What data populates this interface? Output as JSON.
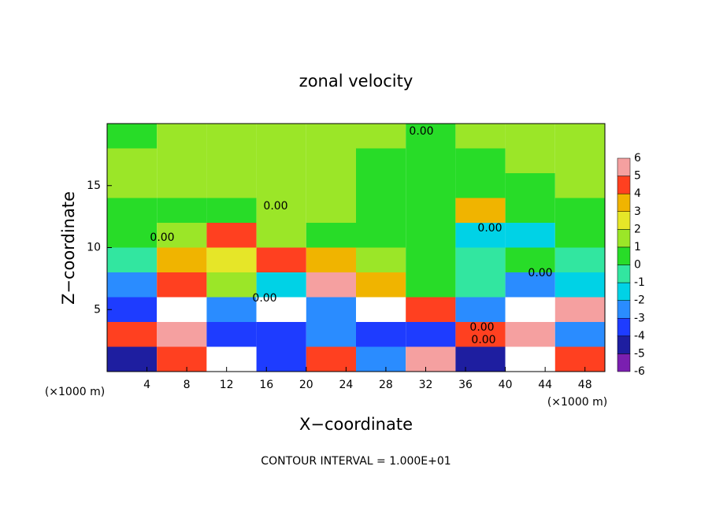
{
  "chart_data": {
    "type": "heatmap",
    "title": "zonal velocity",
    "x_label": "X−coordinate",
    "y_label": "Z−coordinate",
    "x_unit": "(×1000 m)",
    "y_unit": "(×1000 m)",
    "footer": "CONTOUR INTERVAL = 1.000E+01",
    "annotations": [
      "0.00",
      "0.00",
      "0.00",
      "0.00",
      "0.00",
      "0.00",
      "0.00",
      "0.00"
    ],
    "xlim": [
      0,
      50
    ],
    "ylim": [
      0,
      20
    ],
    "xticks": [
      4,
      8,
      12,
      16,
      20,
      24,
      28,
      32,
      36,
      40,
      44,
      48
    ],
    "yticks": [
      5,
      10,
      15
    ],
    "x": [
      2.5,
      7.5,
      12.5,
      17.5,
      22.5,
      27.5,
      32.5,
      37.5,
      42.5,
      47.5
    ],
    "y": [
      1,
      3,
      5,
      7,
      9,
      11,
      13,
      15,
      17,
      19
    ],
    "values": [
      [
        -5,
        4,
        -7,
        -4,
        4,
        -3,
        5,
        -5,
        -7,
        4
      ],
      [
        4,
        5,
        -4,
        -4,
        -3,
        -4,
        -4,
        4,
        5,
        -3
      ],
      [
        -4,
        7,
        -3,
        7,
        -3,
        7,
        4,
        -3,
        7,
        5
      ],
      [
        -3,
        4,
        1,
        -2,
        5,
        3,
        0,
        -1,
        -3,
        -2
      ],
      [
        -1,
        3,
        2,
        4,
        3,
        1,
        0,
        -1,
        0,
        -1
      ],
      [
        0,
        1,
        4,
        1,
        0,
        0,
        0,
        -2,
        -2,
        0
      ],
      [
        0,
        0,
        0,
        1,
        1,
        0,
        0,
        3,
        0,
        0
      ],
      [
        1,
        1,
        1,
        1,
        1,
        0,
        0,
        0,
        0,
        1
      ],
      [
        1,
        1,
        1,
        1,
        1,
        0,
        0,
        0,
        1,
        1
      ],
      [
        0,
        1,
        1,
        1,
        1,
        1,
        0,
        1,
        1,
        1
      ]
    ],
    "levels": [
      -6,
      -5,
      -4,
      -3,
      -2,
      -1,
      0,
      1,
      2,
      3,
      4,
      5,
      6
    ],
    "colors": [
      "#7a1fb0",
      "#1e1ea0",
      "#1e3cff",
      "#2a8cff",
      "#00d2e6",
      "#32e6a0",
      "#28dc28",
      "#9be628",
      "#e6e628",
      "#f0b400",
      "#ff4020",
      "#f5a0a0"
    ]
  }
}
